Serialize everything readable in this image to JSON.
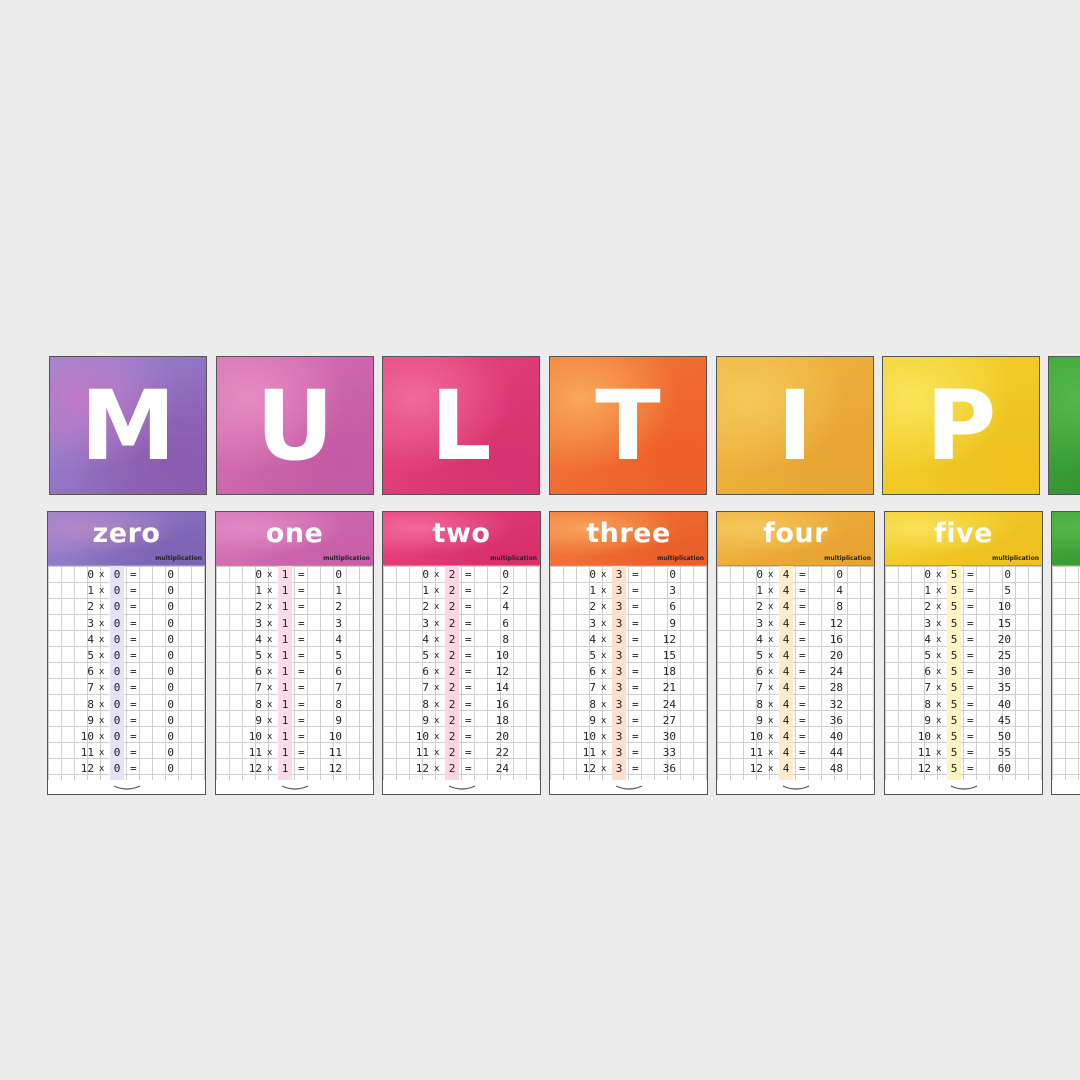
{
  "banner": {
    "letters": [
      {
        "char": "M",
        "colors": [
          "#9a8cd6",
          "#c07ac6",
          "#8a5bb0"
        ]
      },
      {
        "char": "U",
        "colors": [
          "#d774b5",
          "#e58bc3",
          "#c45aa3"
        ]
      },
      {
        "char": "L",
        "colors": [
          "#e8437f",
          "#f06a9a",
          "#d6336f"
        ]
      },
      {
        "char": "T",
        "colors": [
          "#f27a3a",
          "#f9a85a",
          "#ee5f2a"
        ]
      },
      {
        "char": "I",
        "colors": [
          "#f0b73f",
          "#f5c85a",
          "#e8a634"
        ]
      },
      {
        "char": "P",
        "colors": [
          "#f4d22f",
          "#fae45a",
          "#efc21e"
        ]
      },
      {
        "char": "",
        "colors": [
          "#3fa53a",
          "#56b848",
          "#2e8c2c"
        ]
      }
    ]
  },
  "cards": [
    {
      "title": "zero",
      "sub": "multiplication",
      "factor": "0",
      "highlight": "#e6e2f5",
      "colors": [
        "#9a85d0",
        "#b487c9",
        "#7d63b4"
      ],
      "rows": [
        [
          "0",
          "0"
        ],
        [
          "1",
          "0"
        ],
        [
          "2",
          "0"
        ],
        [
          "3",
          "0"
        ],
        [
          "4",
          "0"
        ],
        [
          "5",
          "0"
        ],
        [
          "6",
          "0"
        ],
        [
          "7",
          "0"
        ],
        [
          "8",
          "0"
        ],
        [
          "9",
          "0"
        ],
        [
          "10",
          "0"
        ],
        [
          "11",
          "0"
        ],
        [
          "12",
          "0"
        ]
      ]
    },
    {
      "title": "one",
      "sub": "multiplication",
      "factor": "1",
      "highlight": "#fbdbe9",
      "colors": [
        "#d773b6",
        "#e18ac4",
        "#c760a8"
      ],
      "rows": [
        [
          "0",
          "0"
        ],
        [
          "1",
          "1"
        ],
        [
          "2",
          "2"
        ],
        [
          "3",
          "3"
        ],
        [
          "4",
          "4"
        ],
        [
          "5",
          "5"
        ],
        [
          "6",
          "6"
        ],
        [
          "7",
          "7"
        ],
        [
          "8",
          "8"
        ],
        [
          "9",
          "9"
        ],
        [
          "10",
          "10"
        ],
        [
          "11",
          "11"
        ],
        [
          "12",
          "12"
        ]
      ]
    },
    {
      "title": "two",
      "sub": "multiplication",
      "factor": "2",
      "highlight": "#fcd5e2",
      "colors": [
        "#e8407d",
        "#f0699a",
        "#d8306c"
      ],
      "rows": [
        [
          "0",
          "0"
        ],
        [
          "1",
          "2"
        ],
        [
          "2",
          "4"
        ],
        [
          "3",
          "6"
        ],
        [
          "4",
          "8"
        ],
        [
          "5",
          "10"
        ],
        [
          "6",
          "12"
        ],
        [
          "7",
          "14"
        ],
        [
          "8",
          "16"
        ],
        [
          "9",
          "18"
        ],
        [
          "10",
          "20"
        ],
        [
          "11",
          "22"
        ],
        [
          "12",
          "24"
        ]
      ]
    },
    {
      "title": "three",
      "sub": "multiplication",
      "factor": "3",
      "highlight": "#fde0cc",
      "colors": [
        "#f2783a",
        "#f8a35a",
        "#ea5f2a"
      ],
      "rows": [
        [
          "0",
          "0"
        ],
        [
          "1",
          "3"
        ],
        [
          "2",
          "6"
        ],
        [
          "3",
          "9"
        ],
        [
          "4",
          "12"
        ],
        [
          "5",
          "15"
        ],
        [
          "6",
          "18"
        ],
        [
          "7",
          "21"
        ],
        [
          "8",
          "24"
        ],
        [
          "9",
          "27"
        ],
        [
          "10",
          "30"
        ],
        [
          "11",
          "33"
        ],
        [
          "12",
          "36"
        ]
      ]
    },
    {
      "title": "four",
      "sub": "multiplication",
      "factor": "4",
      "highlight": "#fcecc9",
      "colors": [
        "#f0b33f",
        "#f5c75c",
        "#e8a432"
      ],
      "rows": [
        [
          "0",
          "0"
        ],
        [
          "1",
          "4"
        ],
        [
          "2",
          "8"
        ],
        [
          "3",
          "12"
        ],
        [
          "4",
          "16"
        ],
        [
          "5",
          "20"
        ],
        [
          "6",
          "24"
        ],
        [
          "7",
          "28"
        ],
        [
          "8",
          "32"
        ],
        [
          "9",
          "36"
        ],
        [
          "10",
          "40"
        ],
        [
          "11",
          "44"
        ],
        [
          "12",
          "48"
        ]
      ]
    },
    {
      "title": "five",
      "sub": "multiplication",
      "factor": "5",
      "highlight": "#fdf4c2",
      "colors": [
        "#f3d02e",
        "#f9e15a",
        "#eec11f"
      ],
      "rows": [
        [
          "0",
          "0"
        ],
        [
          "1",
          "5"
        ],
        [
          "2",
          "10"
        ],
        [
          "3",
          "15"
        ],
        [
          "4",
          "20"
        ],
        [
          "5",
          "25"
        ],
        [
          "6",
          "30"
        ],
        [
          "7",
          "35"
        ],
        [
          "8",
          "40"
        ],
        [
          "9",
          "45"
        ],
        [
          "10",
          "50"
        ],
        [
          "11",
          "55"
        ],
        [
          "12",
          "60"
        ]
      ]
    },
    {
      "title": "",
      "sub": "",
      "factor": "",
      "highlight": "#dff2dc",
      "colors": [
        "#3fa53a",
        "#58b94a",
        "#2e8c2c"
      ],
      "rows": []
    }
  ],
  "operators": {
    "times": "x",
    "equals": "="
  }
}
